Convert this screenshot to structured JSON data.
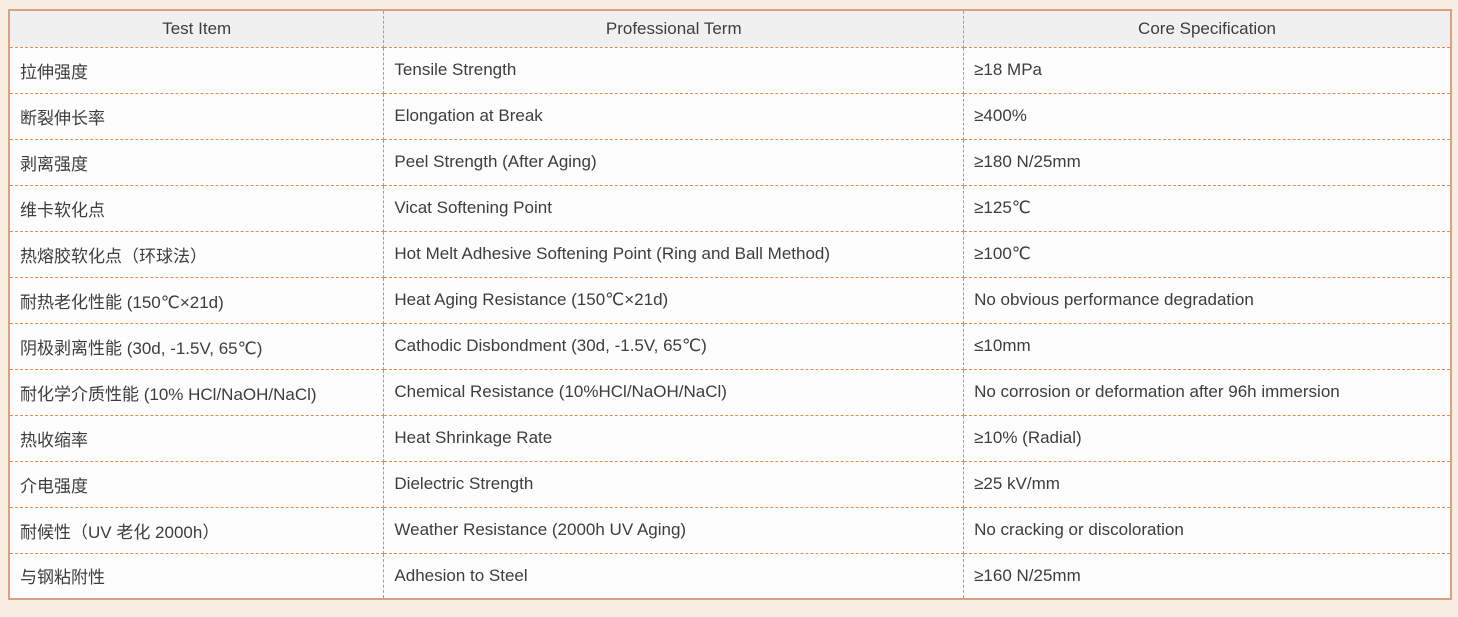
{
  "table": {
    "headers": [
      "Test Item",
      "Professional Term",
      "Core Specification"
    ],
    "rows": [
      {
        "test_item": "拉伸强度",
        "professional_term": "Tensile Strength",
        "core_specification": "≥18 MPa"
      },
      {
        "test_item": "断裂伸长率",
        "professional_term": "Elongation at Break",
        "core_specification": "≥400%"
      },
      {
        "test_item": "剥离强度",
        "professional_term": "Peel Strength (After Aging)",
        "core_specification": "≥180 N/25mm"
      },
      {
        "test_item": "维卡软化点",
        "professional_term": "Vicat Softening Point",
        "core_specification": "≥125℃"
      },
      {
        "test_item": "热熔胶软化点（环球法）",
        "professional_term": "Hot Melt Adhesive Softening Point (Ring and Ball Method)",
        "core_specification": "≥100℃"
      },
      {
        "test_item": "耐热老化性能 (150℃×21d)",
        "professional_term": "Heat Aging Resistance (150℃×21d)",
        "core_specification": "No obvious performance degradation"
      },
      {
        "test_item": "阴极剥离性能 (30d, -1.5V, 65℃)",
        "professional_term": "Cathodic Disbondment (30d, -1.5V, 65℃)",
        "core_specification": "≤10mm"
      },
      {
        "test_item": "耐化学介质性能 (10% HCl/NaOH/NaCl)",
        "professional_term": "Chemical Resistance (10%HCl/NaOH/NaCl)",
        "core_specification": "No corrosion or deformation after 96h immersion"
      },
      {
        "test_item": "热收缩率",
        "professional_term": "Heat Shrinkage Rate",
        "core_specification": "≥10% (Radial)"
      },
      {
        "test_item": "介电强度",
        "professional_term": "Dielectric Strength",
        "core_specification": "≥25 kV/mm"
      },
      {
        "test_item": "耐候性（UV 老化 2000h）",
        "professional_term": "Weather Resistance (2000h UV Aging)",
        "core_specification": "No cracking or discoloration"
      },
      {
        "test_item": "与钢粘附性",
        "professional_term": "Adhesion to Steel",
        "core_specification": "≥160 N/25mm"
      }
    ]
  },
  "colors": {
    "page_background": "#f8efe2",
    "outer_border": "#d9a081",
    "inner_border_dashed": "#e08c52",
    "header_background": "#f1f0f1",
    "cell_background": "#fdfdfd",
    "text": "#3d3d3d"
  }
}
